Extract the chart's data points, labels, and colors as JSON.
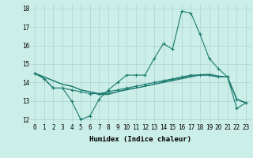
{
  "xlabel": "Humidex (Indice chaleur)",
  "background_color": "#cceee8",
  "grid_color": "#aad4cc",
  "line_color": "#1a7a6e",
  "x_values": [
    0,
    1,
    2,
    3,
    4,
    5,
    6,
    7,
    8,
    9,
    10,
    11,
    12,
    13,
    14,
    15,
    16,
    17,
    18,
    19,
    20,
    21,
    22,
    23
  ],
  "series1": [
    14.5,
    14.2,
    13.7,
    13.7,
    13.0,
    12.0,
    12.2,
    13.1,
    13.6,
    14.0,
    14.4,
    14.4,
    14.4,
    15.3,
    16.1,
    15.8,
    17.85,
    17.75,
    16.6,
    15.3,
    14.75,
    14.3,
    12.6,
    12.9
  ],
  "series2": [
    14.5,
    14.2,
    13.7,
    13.7,
    13.6,
    13.5,
    13.4,
    13.4,
    13.5,
    13.6,
    13.7,
    13.8,
    13.9,
    14.0,
    14.1,
    14.2,
    14.3,
    14.4,
    14.4,
    14.4,
    14.3,
    14.3,
    13.1,
    12.9
  ],
  "series3": [
    14.5,
    14.3,
    14.1,
    13.9,
    13.8,
    13.6,
    13.5,
    13.4,
    13.4,
    13.5,
    13.6,
    13.7,
    13.8,
    13.9,
    14.0,
    14.1,
    14.2,
    14.3,
    14.4,
    14.4,
    14.3,
    14.3,
    13.1,
    12.9
  ],
  "series4": [
    14.5,
    14.3,
    14.1,
    13.9,
    13.8,
    13.6,
    13.5,
    13.35,
    13.35,
    13.5,
    13.65,
    13.7,
    13.8,
    13.9,
    14.05,
    14.15,
    14.25,
    14.35,
    14.42,
    14.45,
    14.35,
    14.3,
    13.1,
    12.9
  ],
  "ylim": [
    11.8,
    18.2
  ],
  "xlim": [
    -0.5,
    23.5
  ],
  "yticks": [
    12,
    13,
    14,
    15,
    16,
    17,
    18
  ],
  "xticks": [
    0,
    1,
    2,
    3,
    4,
    5,
    6,
    7,
    8,
    9,
    10,
    11,
    12,
    13,
    14,
    15,
    16,
    17,
    18,
    19,
    20,
    21,
    22,
    23
  ],
  "fontsize_label": 6.5,
  "fontsize_tick": 5.5
}
